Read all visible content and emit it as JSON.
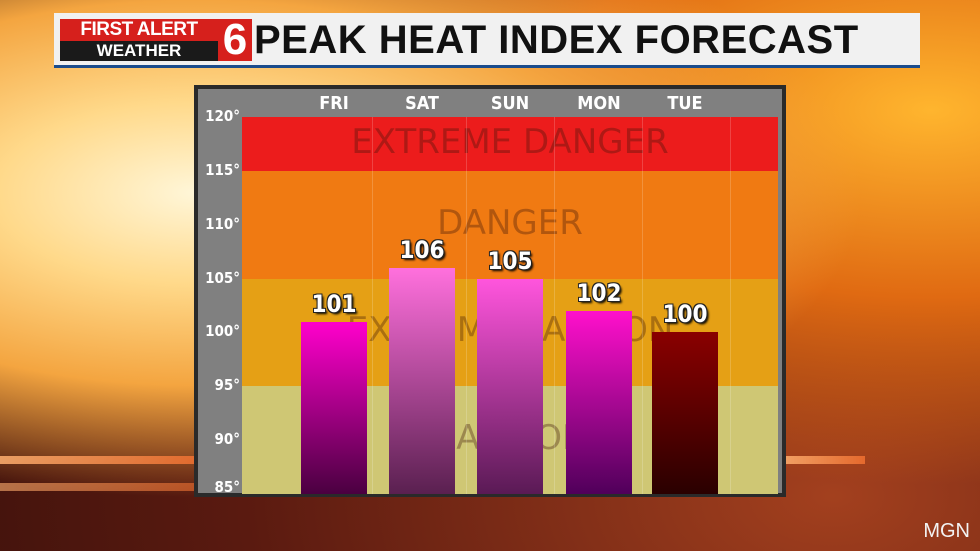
{
  "header": {
    "logo_line1": "FIRST ALERT",
    "logo_line2": "WEATHER",
    "logo_channel": "6",
    "title": "PEAK HEAT INDEX FORECAST"
  },
  "watermark": "MGN",
  "chart_data": {
    "type": "bar",
    "title": "PEAK HEAT INDEX FORECAST",
    "categories": [
      "FRI",
      "SAT",
      "SUN",
      "MON",
      "TUE"
    ],
    "values": [
      101,
      106,
      105,
      102,
      100
    ],
    "value_labels": [
      "101",
      "106",
      "105",
      "102",
      "100"
    ],
    "bar_colors": [
      [
        "#ff00cc",
        "#4a0040"
      ],
      [
        "#ff70dd",
        "#5a2050"
      ],
      [
        "#ff55dd",
        "#5a1a55"
      ],
      [
        "#ff10cc",
        "#50005a"
      ],
      [
        "#8a0000",
        "#2a0000"
      ]
    ],
    "xlabel": "",
    "ylabel": "",
    "ylim": [
      85,
      120
    ],
    "y_ticks": [
      "120°",
      "115°",
      "110°",
      "105°",
      "100°",
      "95°",
      "90°",
      "85°"
    ],
    "y_tick_values": [
      120,
      115,
      110,
      105,
      100,
      95,
      90,
      85
    ],
    "zones": [
      {
        "label": "EXTREME DANGER",
        "from": 115,
        "to": 120,
        "color": "#ec1c1c"
      },
      {
        "label": "DANGER",
        "from": 105,
        "to": 115,
        "color": "#f07a12"
      },
      {
        "label": "EXTREME CAUTION",
        "from": 95,
        "to": 105,
        "color": "#e5a015"
      },
      {
        "label": "CAUTION",
        "from": 85,
        "to": 95,
        "color": "#cfc774"
      }
    ],
    "grid": true,
    "legend": "none"
  }
}
